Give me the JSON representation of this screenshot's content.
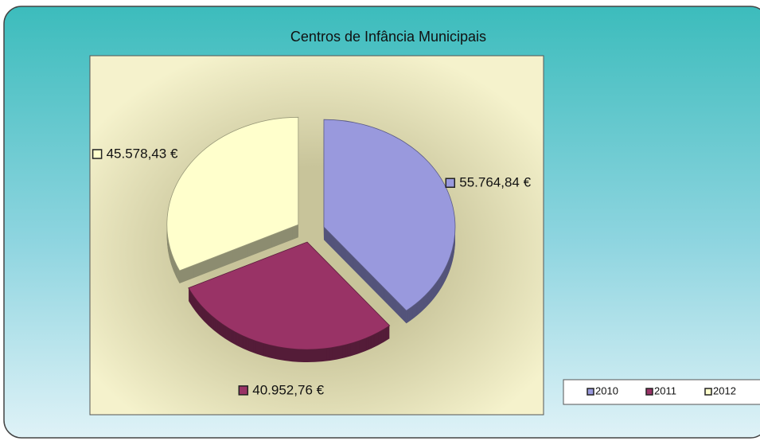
{
  "chart_data": {
    "type": "pie",
    "title": "Centros de Infância Municipais",
    "categories": [
      "2010",
      "2011",
      "2012"
    ],
    "values": [
      55764.84,
      40952.76,
      45578.43
    ],
    "value_labels": [
      "55.764,84 €",
      "40.952,76 €",
      "45.578,43 €"
    ],
    "colors": [
      "#9999dd",
      "#993366",
      "#ffffcc"
    ],
    "legend": "bottom-right"
  }
}
